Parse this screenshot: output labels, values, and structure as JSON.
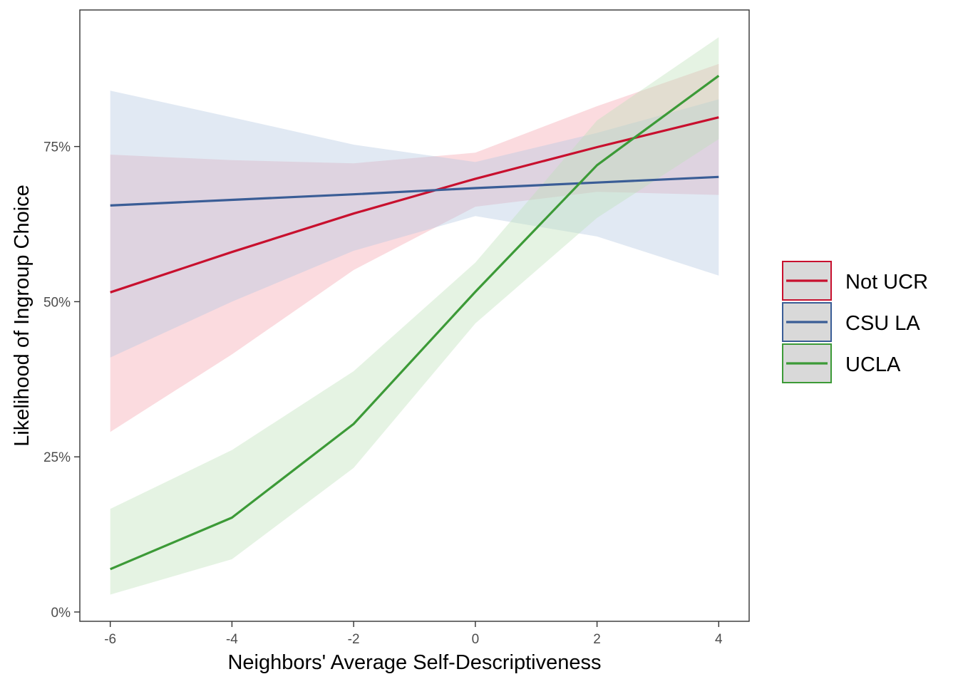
{
  "chart_data": {
    "type": "line",
    "title": "",
    "xlabel": "Neighbors' Average Self-Descriptiveness",
    "ylabel": "Likelihood of Ingroup Choice",
    "xlim": [
      -6.5,
      4.5
    ],
    "ylim": [
      -0.015,
      0.97
    ],
    "x_ticks": [
      -6,
      -4,
      -2,
      0,
      2,
      4
    ],
    "x_tick_labels": [
      "-6",
      "-4",
      "-2",
      "0",
      "2",
      "4"
    ],
    "y_ticks": [
      0,
      0.25,
      0.5,
      0.75
    ],
    "y_tick_labels": [
      "0%",
      "25%",
      "50%",
      "75%"
    ],
    "grid": false,
    "legend_position": "right",
    "series": [
      {
        "name": "Not UCR",
        "color": "#c8102e",
        "fill": "#f4a6ae",
        "x": [
          -6,
          -4,
          -2,
          0,
          2,
          4
        ],
        "y": [
          0.515,
          0.58,
          0.642,
          0.698,
          0.749,
          0.797
        ],
        "lower": [
          0.29,
          0.415,
          0.551,
          0.653,
          0.677,
          0.672
        ],
        "upper": [
          0.737,
          0.728,
          0.723,
          0.74,
          0.815,
          0.883
        ]
      },
      {
        "name": "CSU LA",
        "color": "#3a5d96",
        "fill": "#b5c8e2",
        "x": [
          -6,
          -4,
          -2,
          0,
          2,
          4
        ],
        "y": [
          0.655,
          0.664,
          0.673,
          0.683,
          0.692,
          0.701
        ],
        "lower": [
          0.41,
          0.5,
          0.582,
          0.638,
          0.605,
          0.542
        ],
        "upper": [
          0.84,
          0.797,
          0.753,
          0.725,
          0.772,
          0.826
        ]
      },
      {
        "name": "UCLA",
        "color": "#3c9a37",
        "fill": "#bfe0b9",
        "x": [
          -6,
          -4,
          -2,
          0,
          2,
          4
        ],
        "y": [
          0.069,
          0.152,
          0.303,
          0.516,
          0.72,
          0.864
        ],
        "lower": [
          0.028,
          0.085,
          0.232,
          0.465,
          0.635,
          0.762
        ],
        "upper": [
          0.166,
          0.261,
          0.388,
          0.563,
          0.792,
          0.926
        ]
      }
    ]
  }
}
